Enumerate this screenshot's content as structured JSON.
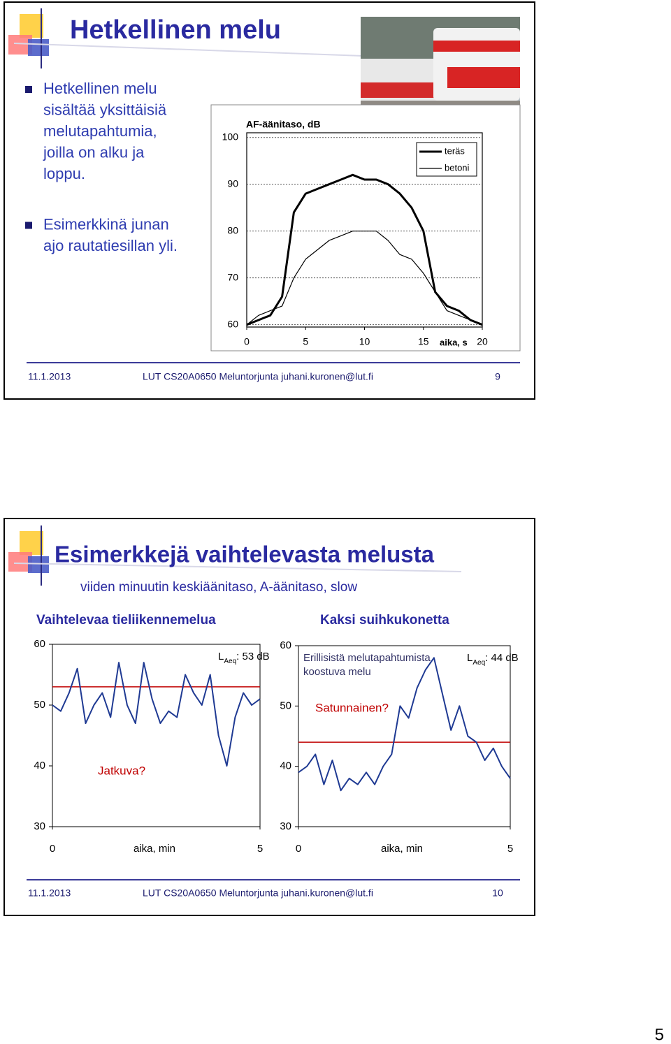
{
  "slides": [
    {
      "title": "Hetkellinen melu",
      "bullets": [
        [
          "Hetkellinen melu",
          "sisältää yksittäisiä",
          "melutapahtumia,",
          "joilla on alku ja",
          "loppu."
        ],
        [
          "Esimerkkinä junan",
          "ajo rautatiesillan yli."
        ]
      ],
      "chart": {
        "type": "line",
        "y_label": "AF-äänitaso, dB",
        "x_label": "aika, s",
        "x": [
          0,
          1,
          2,
          3,
          4,
          5,
          6,
          7,
          8,
          9,
          10,
          11,
          12,
          13,
          14,
          15,
          16,
          17,
          18,
          19,
          20
        ],
        "series": [
          {
            "name": "teräs",
            "color": "#000000",
            "values": [
              60,
              61,
              62,
              66,
              84,
              88,
              89,
              90,
              91,
              92,
              91,
              91,
              90,
              88,
              85,
              80,
              67,
              64,
              63,
              61,
              60
            ]
          },
          {
            "name": "betoni",
            "color": "#000000",
            "values": [
              60,
              62,
              63,
              64,
              70,
              74,
              76,
              78,
              79,
              80,
              80,
              80,
              78,
              75,
              74,
              71,
              67,
              63,
              62,
              61,
              60
            ]
          }
        ],
        "xlim": [
          0,
          20
        ],
        "ylim": [
          59.5,
          101
        ],
        "xticks": [
          0,
          5,
          10,
          15,
          20
        ],
        "yticks": [
          60,
          70,
          80,
          90,
          100
        ],
        "grid": true
      },
      "footer": {
        "date": "11.1.2013",
        "course": "LUT  CS20A0650 Meluntorjunta  juhani.kuronen@lut.fi",
        "number": "9"
      }
    },
    {
      "title": "Esimerkkejä vaihtelevasta melusta",
      "subtitle": "viiden minuutin keskiäänitaso, A-äänitaso, slow",
      "charts": [
        {
          "type": "line",
          "heading": "Vaihtelevaa tieliikennemelua",
          "x_label": "aika, min",
          "x": [
            0,
            0.2,
            0.4,
            0.6,
            0.8,
            1,
            1.2,
            1.4,
            1.6,
            1.8,
            2,
            2.2,
            2.4,
            2.6,
            2.8,
            3,
            3.2,
            3.4,
            3.6,
            3.8,
            4,
            4.2,
            4.4,
            4.6,
            4.8,
            5
          ],
          "series": [
            {
              "color": "#1f3a93",
              "values": [
                50,
                49,
                52,
                56,
                47,
                50,
                52,
                48,
                57,
                50,
                47,
                57,
                51,
                47,
                49,
                48,
                55,
                52,
                50,
                55,
                45,
                40,
                48,
                52,
                50,
                51
              ]
            }
          ],
          "reference_line": {
            "value": 53,
            "color": "#c00000",
            "label": "L",
            "label_sub": "Aeq",
            "label_rest": ": 53 dB"
          },
          "annotations": [
            "Jatkuva?"
          ],
          "xlim": [
            0,
            5
          ],
          "ylim": [
            30,
            60
          ],
          "xticks": [
            0,
            5
          ],
          "yticks": [
            30,
            40,
            50,
            60
          ]
        },
        {
          "type": "line",
          "heading": "Kaksi suihkukonetta",
          "x_label": "aika, min",
          "x": [
            0,
            0.2,
            0.4,
            0.6,
            0.8,
            1,
            1.2,
            1.4,
            1.6,
            1.8,
            2,
            2.2,
            2.4,
            2.6,
            2.8,
            3,
            3.2,
            3.4,
            3.6,
            3.8,
            4,
            4.2,
            4.4,
            4.6,
            4.8,
            5
          ],
          "series": [
            {
              "color": "#1f3a93",
              "values": [
                39,
                40,
                42,
                37,
                41,
                36,
                38,
                37,
                39,
                37,
                40,
                42,
                50,
                48,
                53,
                56,
                58,
                52,
                46,
                50,
                45,
                44,
                41,
                43,
                40,
                38
              ]
            }
          ],
          "reference_line": {
            "value": 44,
            "color": "#c00000",
            "label": "L",
            "label_sub": "Aeq",
            "label_rest": ": 44 dB"
          },
          "annotations": [
            "Erillisistä melutapahtumista",
            "koostuva melu",
            "Satunnainen?"
          ],
          "xlim": [
            0,
            5
          ],
          "ylim": [
            30,
            60
          ],
          "xticks": [
            0,
            5
          ],
          "yticks": [
            30,
            40,
            50,
            60
          ]
        }
      ],
      "footer": {
        "date": "11.1.2013",
        "course": "LUT  CS20A0650 Meluntorjunta  juhani.kuronen@lut.fi",
        "number": "10"
      }
    }
  ],
  "page_number": "5"
}
